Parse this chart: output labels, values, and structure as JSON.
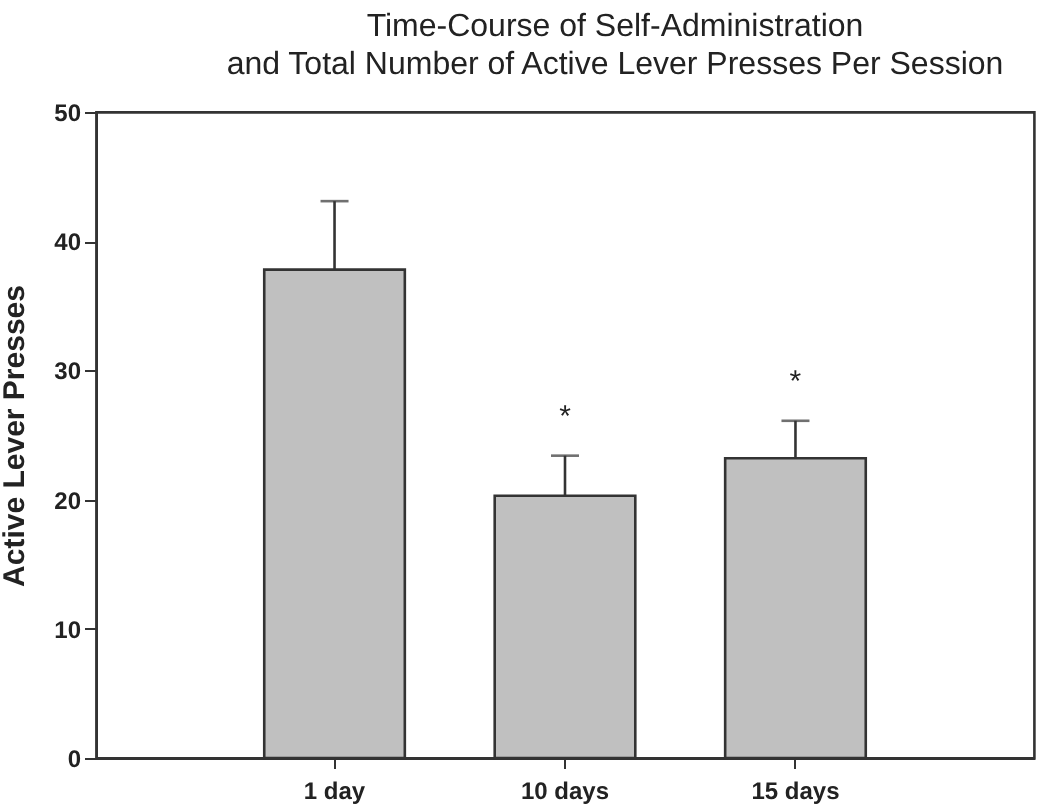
{
  "chart_data": {
    "type": "bar",
    "title": "Time-Course of Self-Administration\nand Total Number of Active Lever Presses Per Session",
    "ylabel": "Active Lever Presses",
    "categories": [
      "1 day",
      "10 days",
      "15 days"
    ],
    "values": [
      37.8,
      20.3,
      23.2
    ],
    "color": "#c0c0c0",
    "errors": [
      [
        37.8,
        43.1
      ],
      [
        20.3,
        23.4
      ],
      [
        23.2,
        26.1
      ]
    ],
    "ylim": [
      0,
      50
    ],
    "yticks": [
      0,
      10,
      20,
      30,
      40,
      50
    ],
    "annotations": [
      {
        "text": "*",
        "x": "10 days",
        "y": 23.4
      },
      {
        "text": "*",
        "x": "15 days",
        "y": 26.1
      }
    ]
  }
}
